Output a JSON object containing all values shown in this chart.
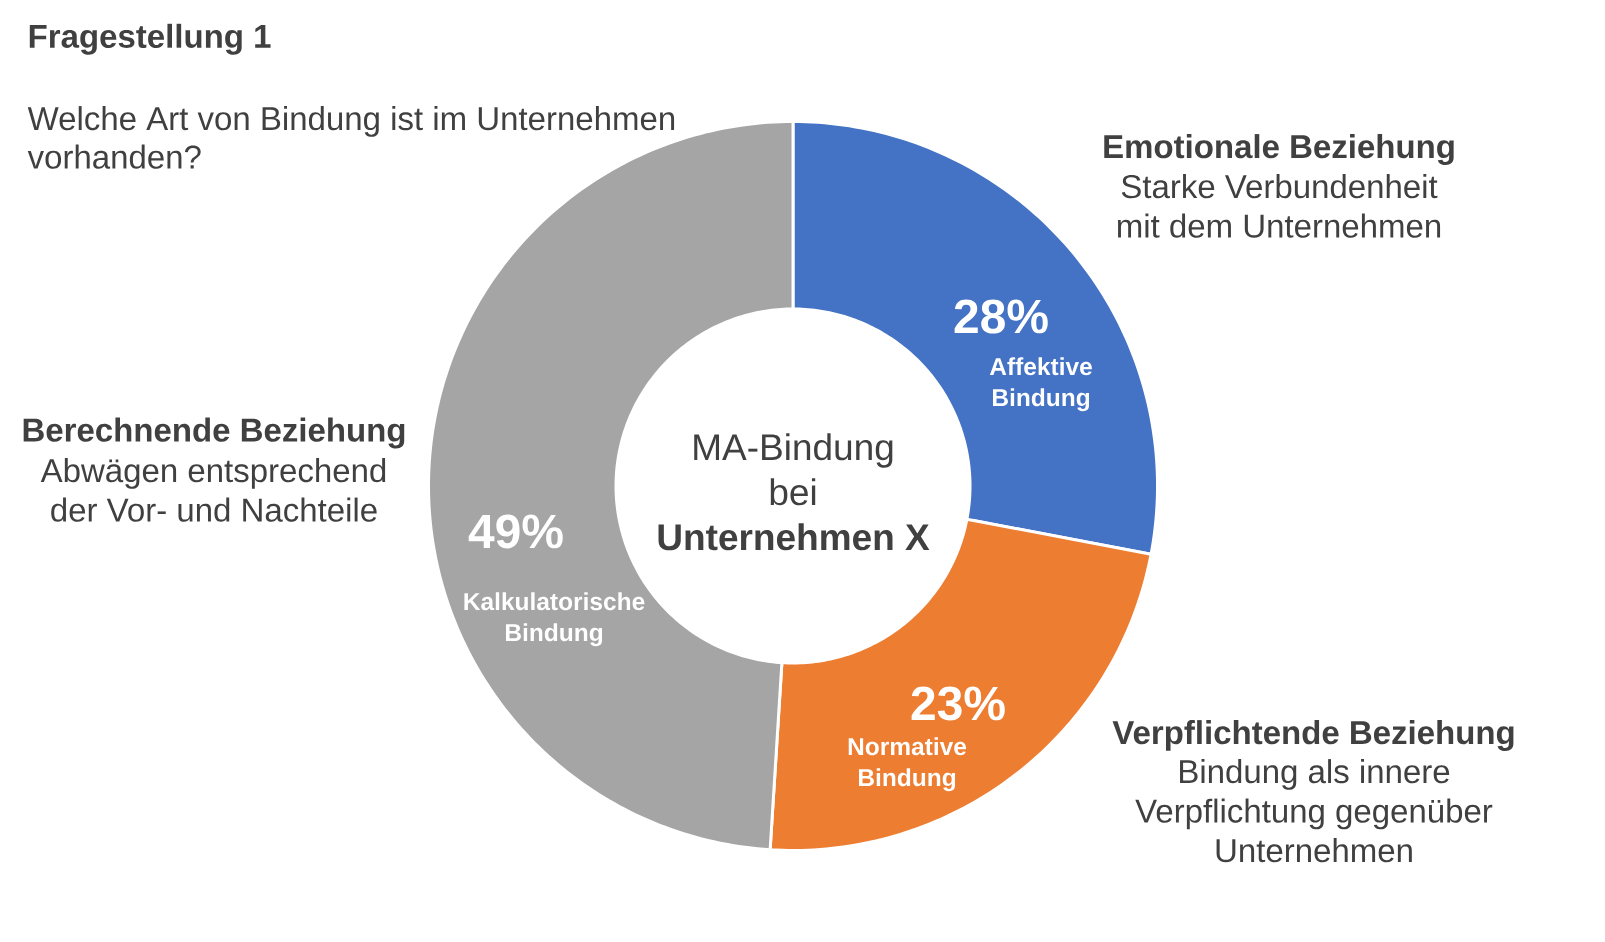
{
  "chart_data": {
    "type": "donut",
    "title": "Fragestellung 1",
    "subtitle": "Welche Art von Bindung ist im Unternehmen vorhanden?",
    "categories": [
      "Affektive Bindung",
      "Normative Bindung",
      "Kalkulatorische Bindung"
    ],
    "values": [
      28,
      23,
      49
    ],
    "colors": [
      "#4472c4",
      "#ed7d31",
      "#a5a5a5"
    ],
    "value_labels": [
      "28%",
      "23%",
      "49%"
    ],
    "annotations": [
      "MA-Bindung bei",
      "Unternehmen X",
      "Emotionale Beziehung",
      "Starke Verbundenheit mit dem Unternehmen",
      "Verpflichtende Beziehung",
      "Bindung als innere Verpflichtung gegenüber Unternehmen",
      "Berechnende Beziehung",
      "Abwägen entsprechend der Vor- und Nachteile"
    ]
  }
}
